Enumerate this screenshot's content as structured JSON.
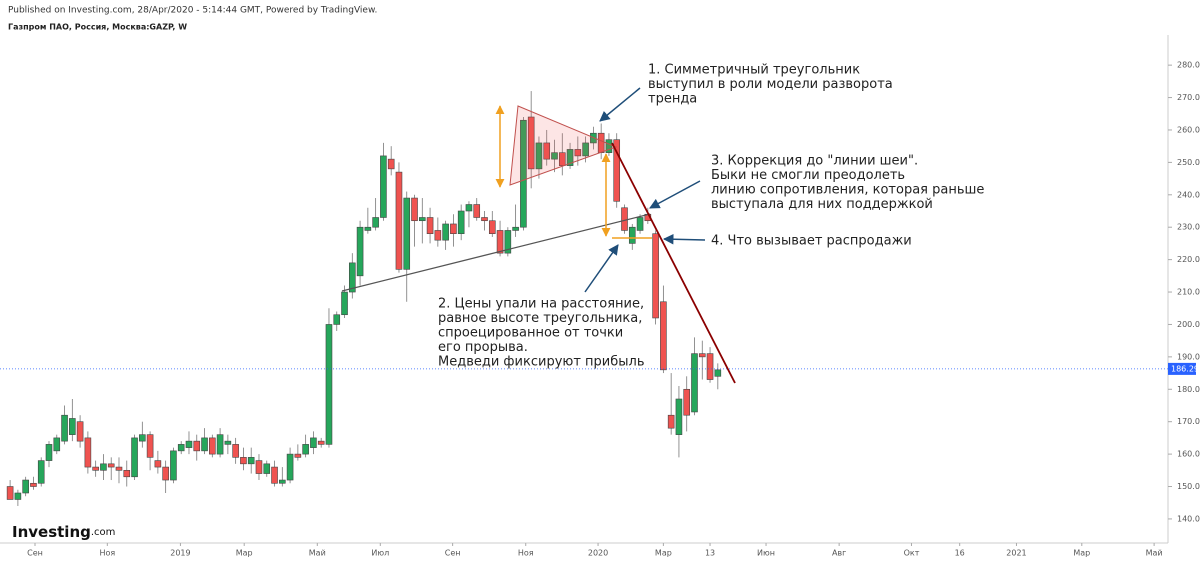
{
  "chart_data": {
    "type": "candlestick",
    "header": "Published on Investing.com, 28/Apr/2020 - 5:14:44 GMT, Powered by TradingView.",
    "title": "Газпром ПАО, Россия, Москва:GAZP, W",
    "logo": {
      "brand": "Investing",
      "suffix": ".com"
    },
    "up_color": "#26a65b",
    "down_color": "#ef5350",
    "open": [
      150,
      146,
      148,
      151,
      151,
      158,
      161,
      164,
      166,
      170,
      165,
      156,
      155,
      157,
      156,
      155,
      153,
      164,
      166,
      158,
      156,
      152,
      161,
      162,
      164,
      161,
      165,
      160,
      163,
      163,
      159,
      157,
      158,
      154,
      156,
      151,
      152,
      160,
      160,
      162,
      164,
      163,
      200,
      203,
      210,
      215,
      229,
      230,
      233,
      251,
      247,
      217,
      239,
      232,
      233,
      229,
      226,
      231,
      228,
      235,
      237,
      233,
      232,
      229,
      222,
      229,
      230,
      264,
      248,
      256,
      251,
      253,
      249,
      254,
      252,
      256,
      259,
      253,
      257,
      236,
      225,
      229,
      234,
      228,
      207,
      172,
      166,
      180,
      173,
      191,
      191,
      184
    ],
    "high": [
      152,
      149,
      153,
      153,
      159,
      164,
      166,
      175,
      177,
      172,
      167,
      158,
      160,
      159,
      159,
      158,
      166,
      170,
      167,
      161,
      158,
      162,
      164,
      167,
      166,
      168,
      166,
      168,
      166,
      165,
      162,
      162,
      160,
      158,
      158,
      156,
      162,
      163,
      166,
      167,
      165,
      205,
      204,
      212,
      222,
      232,
      236,
      239,
      256,
      255,
      250,
      241,
      240,
      239,
      236,
      233,
      232,
      234,
      237,
      238,
      239,
      235,
      235,
      232,
      230,
      237,
      264,
      272,
      258,
      260,
      257,
      259,
      256,
      258,
      258,
      261,
      262,
      259,
      259,
      237,
      231,
      234,
      236,
      229,
      212,
      185,
      181,
      184,
      196,
      195,
      193,
      188
    ],
    "low": [
      146,
      144,
      147,
      149,
      150,
      156,
      160,
      163,
      164,
      162,
      154,
      153,
      152,
      152,
      151,
      150,
      152,
      162,
      155,
      154,
      148,
      151,
      160,
      160,
      158,
      160,
      159,
      159,
      160,
      157,
      155,
      154,
      152,
      153,
      150,
      150,
      151,
      158,
      159,
      160,
      162,
      162,
      198,
      202,
      208,
      212,
      228,
      229,
      232,
      246,
      216,
      207,
      224,
      225,
      225,
      224,
      223,
      224,
      226,
      230,
      232,
      229,
      227,
      221,
      221,
      227,
      229,
      242,
      245,
      249,
      247,
      246,
      248,
      249,
      250,
      254,
      251,
      252,
      236,
      228,
      223,
      228,
      231,
      200,
      185,
      166,
      159,
      167,
      172,
      183,
      182,
      180
    ],
    "close": [
      146,
      148,
      152,
      150,
      158,
      163,
      165,
      172,
      171,
      164,
      156,
      155,
      157,
      156,
      155,
      153,
      165,
      166,
      159,
      156,
      152,
      161,
      163,
      164,
      161,
      165,
      160,
      166,
      164,
      159,
      157,
      159,
      154,
      157,
      151,
      152,
      160,
      159,
      163,
      165,
      163,
      200,
      203,
      210,
      219,
      230,
      230,
      233,
      252,
      248,
      217,
      239,
      232,
      233,
      228,
      226,
      231,
      228,
      235,
      237,
      233,
      232,
      228,
      222,
      229,
      230,
      263,
      248,
      256,
      251,
      253,
      249,
      254,
      252,
      256,
      259,
      253,
      257,
      238,
      229,
      230,
      233,
      232,
      202,
      186,
      168,
      177,
      172,
      191,
      190,
      183,
      186
    ],
    "last_price": 186.29,
    "last_price_color": "#2962ff",
    "xlim": [
      -1.3,
      148.5
    ],
    "xticks": [
      {
        "value": 3.2,
        "label": "Сен"
      },
      {
        "value": 12.5,
        "label": "Ноя"
      },
      {
        "value": 21.9,
        "label": "2019"
      },
      {
        "value": 30.1,
        "label": "Мар"
      },
      {
        "value": 39.5,
        "label": "Май"
      },
      {
        "value": 47.6,
        "label": "Июл"
      },
      {
        "value": 56.9,
        "label": "Сен"
      },
      {
        "value": 66.3,
        "label": "Ноя"
      },
      {
        "value": 75.6,
        "label": "2020"
      },
      {
        "value": 84.0,
        "label": "Мар"
      },
      {
        "value": 90.0,
        "label": "13"
      },
      {
        "value": 97.2,
        "label": "Июн"
      },
      {
        "value": 106.6,
        "label": "Авг"
      },
      {
        "value": 115.9,
        "label": "Окт"
      },
      {
        "value": 122.1,
        "label": "16"
      },
      {
        "value": 129.4,
        "label": "2021"
      },
      {
        "value": 137.8,
        "label": "Мар"
      },
      {
        "value": 147.1,
        "label": "Май"
      }
    ],
    "ylim": [
      133.5,
      289.3
    ],
    "yticks": [
      {
        "value": 140,
        "label": "140.00"
      },
      {
        "value": 150,
        "label": "150.00"
      },
      {
        "value": 160,
        "label": "160.00"
      },
      {
        "value": 170,
        "label": "170.00"
      },
      {
        "value": 180,
        "label": "180.00"
      },
      {
        "value": 190,
        "label": "190.00"
      },
      {
        "value": 200,
        "label": "200.00"
      },
      {
        "value": 210,
        "label": "210.00"
      },
      {
        "value": 220,
        "label": "220.00"
      },
      {
        "value": 230,
        "label": "230.00"
      },
      {
        "value": 240,
        "label": "240.00"
      },
      {
        "value": 250,
        "label": "250.00"
      },
      {
        "value": 260,
        "label": "260.00"
      },
      {
        "value": 270,
        "label": "270.00"
      },
      {
        "value": 280,
        "label": "280.00"
      }
    ],
    "annotations": [
      {
        "lines": [
          "1. Симметричный треугольник",
          "выступил в роли модели разворота",
          "тренда"
        ]
      },
      {
        "lines": [
          "2. Цены упали на расстояние,",
          "равное высоте треугольника,",
          "спроецированное от точки",
          "его прорыва.",
          "Медведи фиксируют прибыль"
        ]
      },
      {
        "lines": [
          "3. Коррекция до \"линии шеи\".",
          "Быки не смогли преодолеть",
          "линию сопротивления, которая раньше",
          "выступала для них поддержкой"
        ]
      },
      {
        "lines": [
          "4. Что вызывает распродажи"
        ]
      }
    ]
  }
}
